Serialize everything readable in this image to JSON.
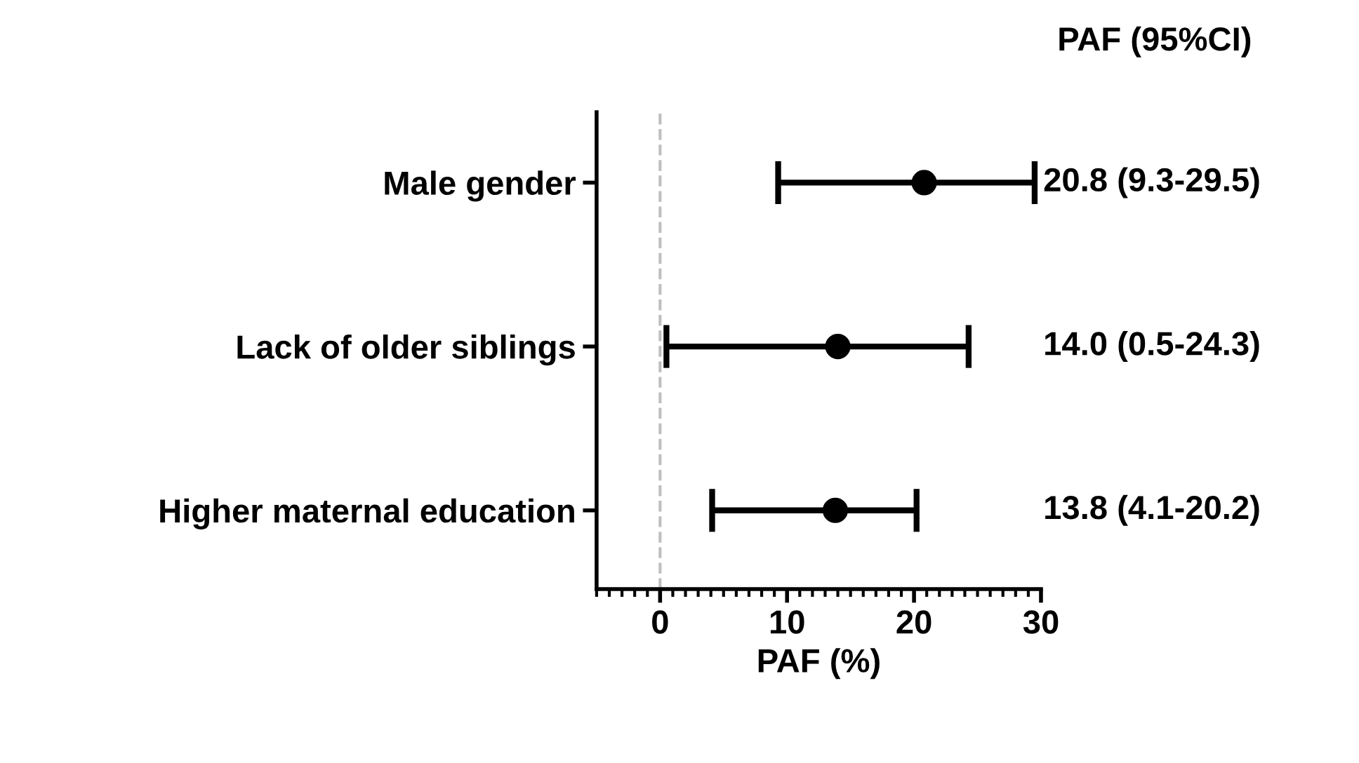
{
  "chart_data": {
    "type": "scatter",
    "orientation": "horizontal",
    "xlabel": "PAF (%)",
    "categories": [
      "Male gender",
      "Lack of older siblings",
      "Higher maternal education"
    ],
    "values": [
      20.8,
      14.0,
      13.8
    ],
    "errors": [
      [
        9.3,
        29.5
      ],
      [
        0.5,
        24.3
      ],
      [
        4.1,
        20.2
      ]
    ],
    "value_labels": [
      "20.8 (9.3-29.5)",
      "14.0 (0.5-24.3)",
      "13.8 (4.1-20.2)"
    ],
    "color": "#000000",
    "marker": "circle",
    "xlim": [
      -5,
      30
    ],
    "xticks": [
      0,
      10,
      20,
      30
    ],
    "ref_lines": [
      {
        "axis": "x",
        "value": 0,
        "color": "#bfbfbf",
        "line_style": "dashed"
      }
    ],
    "annotations": [
      "PAF (95%CI)"
    ],
    "grid": false,
    "legend": false
  }
}
